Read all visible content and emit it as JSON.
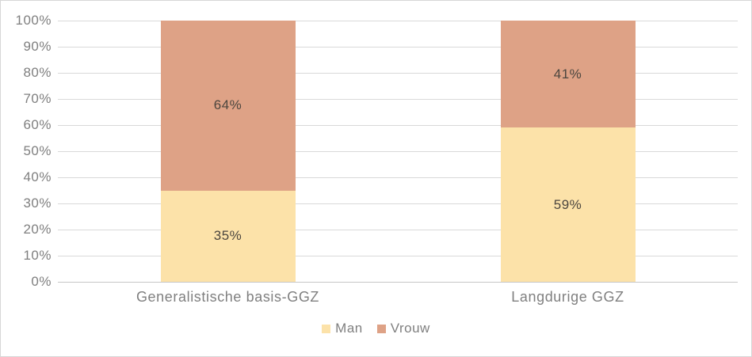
{
  "chart_data": {
    "type": "bar",
    "stacked": true,
    "percent_stacked": true,
    "title": "",
    "xlabel": "",
    "ylabel": "",
    "categories": [
      "Generalistische basis-GGZ",
      "Langdurige GGZ"
    ],
    "series": [
      {
        "name": "Man",
        "values": [
          35,
          59
        ],
        "labels": [
          "35%",
          "59%"
        ],
        "color": "#fce2a9"
      },
      {
        "name": "Vrouw",
        "values": [
          64,
          41
        ],
        "labels": [
          "64%",
          "41%"
        ],
        "color": "#dea286"
      }
    ],
    "yticks": [
      "100%",
      "90%",
      "80%",
      "70%",
      "60%",
      "50%",
      "40%",
      "30%",
      "20%",
      "10%",
      "0%"
    ],
    "ylim": [
      0,
      100
    ],
    "grid": true,
    "gridline_color": "#d9d9d9",
    "axis_line_color": "#c6c6c6",
    "tick_label_color": "#7f7f7f",
    "data_label_color": "#4c463f",
    "legend_position": "bottom"
  }
}
